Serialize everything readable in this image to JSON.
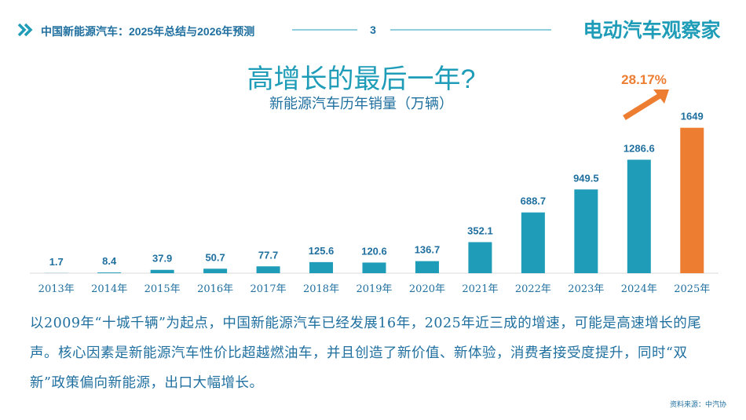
{
  "header": {
    "title": "中国新能源汽车：2025年总结与2026年预测",
    "page": "3",
    "brand": "电动汽车观察家"
  },
  "chart_data": {
    "type": "bar",
    "title": "高增长的最后一年?",
    "subtitle": "新能源汽车历年销量（万辆）",
    "categories": [
      "2013年",
      "2014年",
      "2015年",
      "2016年",
      "2017年",
      "2018年",
      "2019年",
      "2020年",
      "2021年",
      "2022年",
      "2023年",
      "2024年",
      "2025年"
    ],
    "values": [
      1.7,
      8.4,
      37.9,
      50.7,
      77.7,
      125.6,
      120.6,
      136.7,
      352.1,
      688.7,
      949.5,
      1286.6,
      1649
    ],
    "colors": [
      "#1f9db8",
      "#1f9db8",
      "#1f9db8",
      "#1f9db8",
      "#1f9db8",
      "#1f9db8",
      "#1f9db8",
      "#1f9db8",
      "#1f9db8",
      "#1f9db8",
      "#1f9db8",
      "#1f9db8",
      "#ed7d31"
    ],
    "ylim": [
      0,
      1700
    ],
    "annotation": "28.17%"
  },
  "body": "以2009年“十城千辆”为起点，中国新能源汽车已经发展16年，2025年近三成的增速，可能是高速增长的尾声。核心因素是新能源汽车性价比超越燃油车，并且创造了新价值、新体验，消费者接受度提升，同时“双新”政策偏向新能源，出口大幅增长。",
  "source": "资料来源：中汽协"
}
